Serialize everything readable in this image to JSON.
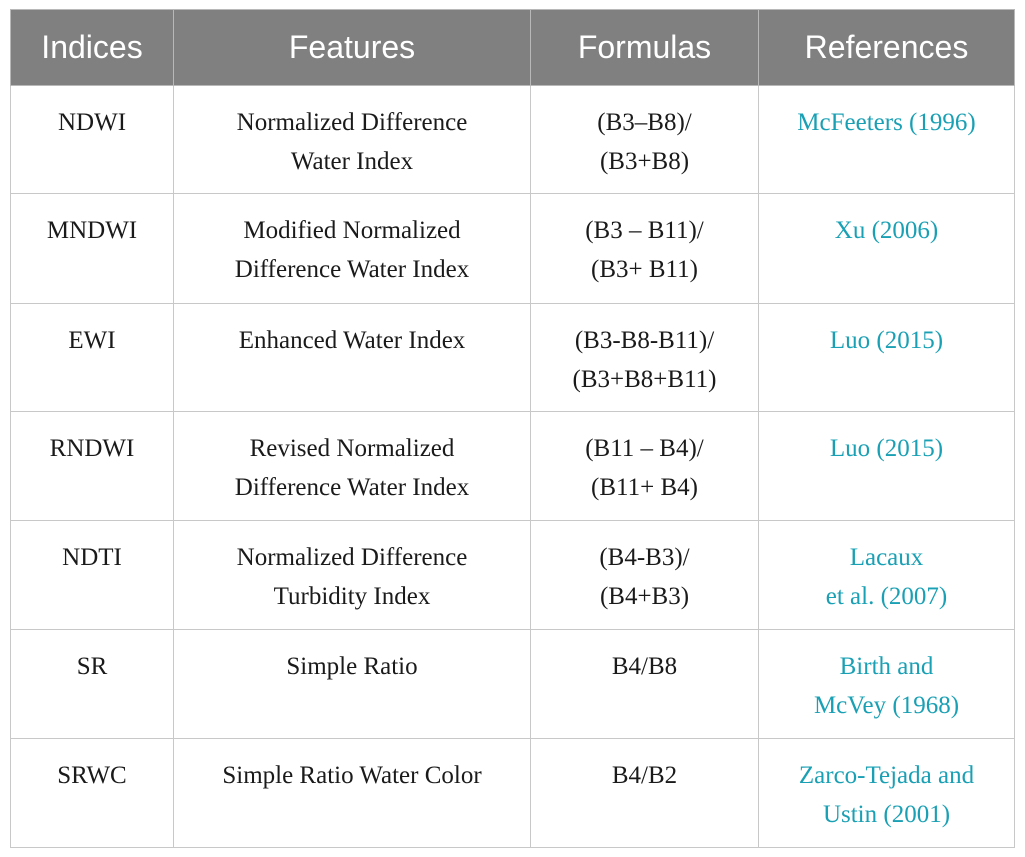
{
  "table": {
    "headers": [
      "Indices",
      "Features",
      "Formulas",
      "References"
    ],
    "rows": [
      {
        "index": "NDWI",
        "feature": [
          "Normalized Difference",
          "Water Index"
        ],
        "formula": [
          "(B3–B8)/",
          "(B3+B8)"
        ],
        "reference": [
          "McFeeters (1996)"
        ]
      },
      {
        "index": "MNDWI",
        "feature": [
          "Modified Normalized",
          "Difference Water Index"
        ],
        "formula": [
          "(B3 – B11)/",
          "(B3+ B11)"
        ],
        "reference": [
          "Xu (2006)"
        ]
      },
      {
        "index": "EWI",
        "feature": [
          "Enhanced Water Index"
        ],
        "formula": [
          "(B3-B8-B11)/",
          "(B3+B8+B11)"
        ],
        "reference": [
          "Luo (2015)"
        ]
      },
      {
        "index": "RNDWI",
        "feature": [
          "Revised Normalized",
          "Difference Water Index"
        ],
        "formula": [
          "(B11 – B4)/",
          "(B11+ B4)"
        ],
        "reference": [
          "Luo (2015)"
        ]
      },
      {
        "index": "NDTI",
        "feature": [
          "Normalized Difference",
          "Turbidity Index"
        ],
        "formula": [
          "(B4-B3)/",
          "(B4+B3)"
        ],
        "reference": [
          "Lacaux",
          "et al. (2007)"
        ]
      },
      {
        "index": "SR",
        "feature": [
          "Simple Ratio"
        ],
        "formula": [
          "B4/B8"
        ],
        "reference": [
          "Birth and",
          "McVey (1968)"
        ]
      },
      {
        "index": "SRWC",
        "feature": [
          "Simple Ratio Water Color"
        ],
        "formula": [
          "B4/B2"
        ],
        "reference": [
          "Zarco-Tejada and",
          "Ustin (2001)"
        ]
      }
    ]
  },
  "colors": {
    "header_bg": "#808080",
    "header_text": "#ffffff",
    "reference_link": "#1aa0b4",
    "grid": "#c8c8c8"
  }
}
